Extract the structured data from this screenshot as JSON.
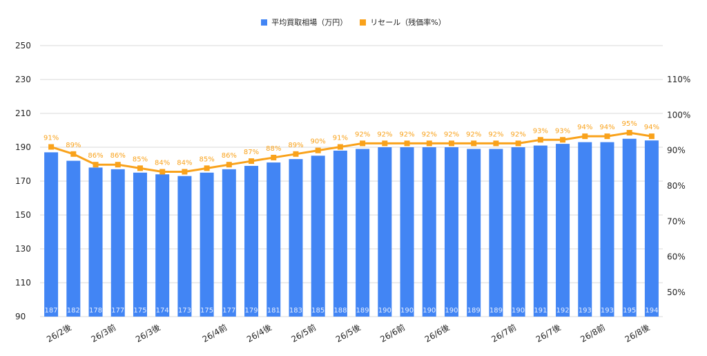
{
  "colors": {
    "bar": "#4285F4",
    "line": "#F9A21B",
    "grid": "#d9d9d9",
    "axis_text": "#222222",
    "bar_label": "#e8f0fe"
  },
  "legend": {
    "bar_label": "平均買取相場（万円）",
    "line_label": "リセール（残価率%）"
  },
  "chart_data": {
    "type": "bar",
    "combo": "bar+line (dual axis)",
    "legend_position": "top-center",
    "grid": true,
    "y_left": {
      "min": 90,
      "max": 250,
      "ticks": [
        90,
        110,
        130,
        150,
        170,
        190,
        210,
        230,
        250
      ]
    },
    "y_right": {
      "ticks": [
        "50%",
        "60%",
        "70%",
        "80%",
        "90%",
        "100%",
        "110%"
      ],
      "values": [
        50,
        60,
        70,
        80,
        90,
        100,
        110
      ]
    },
    "x_tick_labels": [
      {
        "index": 1,
        "label": "26/2後"
      },
      {
        "index": 3,
        "label": "26/3前"
      },
      {
        "index": 5,
        "label": "26/3後"
      },
      {
        "index": 8,
        "label": "26/4前"
      },
      {
        "index": 10,
        "label": "26/4後"
      },
      {
        "index": 12,
        "label": "26/5前"
      },
      {
        "index": 14,
        "label": "26/5後"
      },
      {
        "index": 16,
        "label": "26/6前"
      },
      {
        "index": 18,
        "label": "26/6後"
      },
      {
        "index": 21,
        "label": "26/7前"
      },
      {
        "index": 23,
        "label": "26/7後"
      },
      {
        "index": 25,
        "label": "26/8前"
      },
      {
        "index": 27,
        "label": "26/8後"
      }
    ],
    "series": [
      {
        "name": "平均買取相場（万円）",
        "type": "bar",
        "axis": "left",
        "values": [
          187,
          182,
          178,
          177,
          175,
          174,
          173,
          175,
          177,
          179,
          181,
          183,
          185,
          188,
          189,
          190,
          190,
          190,
          190,
          189,
          189,
          190,
          191,
          192,
          193,
          193,
          195,
          194
        ]
      },
      {
        "name": "リセール（残価率%）",
        "type": "line",
        "axis": "right",
        "values": [
          91,
          89,
          86,
          86,
          85,
          84,
          84,
          85,
          86,
          87,
          88,
          89,
          90,
          91,
          92,
          92,
          92,
          92,
          92,
          92,
          92,
          92,
          93,
          93,
          94,
          94,
          95,
          94
        ]
      }
    ]
  }
}
